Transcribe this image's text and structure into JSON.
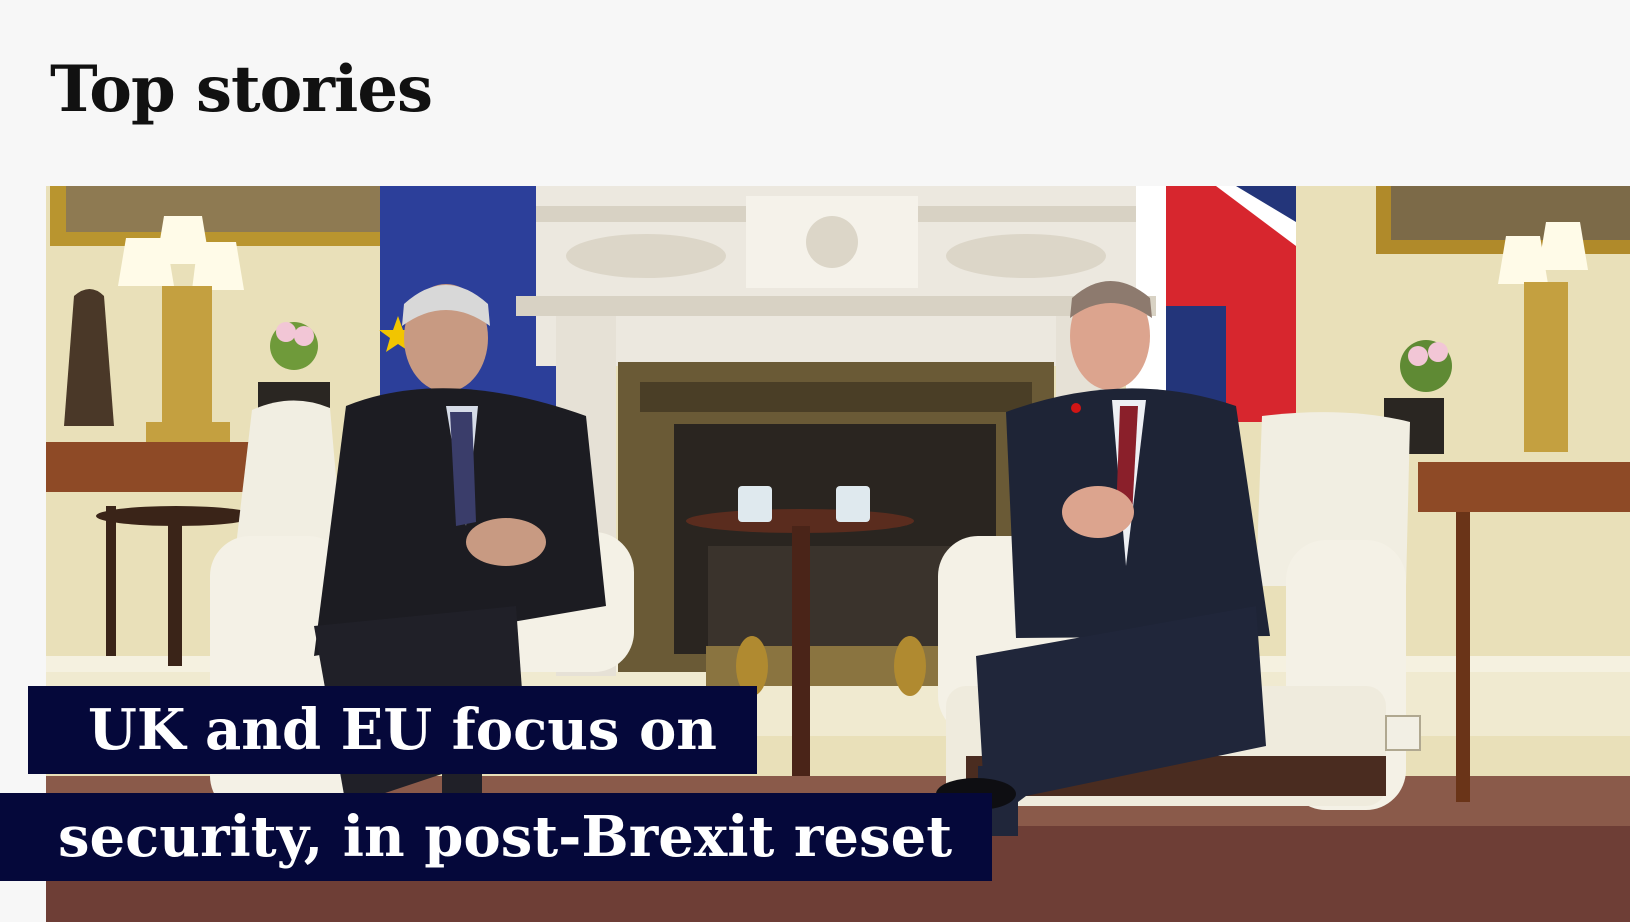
{
  "section": {
    "title": "Top stories"
  },
  "story": {
    "headline_line1": "UK and EU focus on",
    "headline_line2": "security, in post-Brexit reset"
  },
  "colors": {
    "page_bg": "#f7f7f7",
    "headline_bg": "#05083a",
    "headline_text": "#ffffff"
  },
  "icons": [
    "eu-flag-icon",
    "union-jack-icon"
  ]
}
